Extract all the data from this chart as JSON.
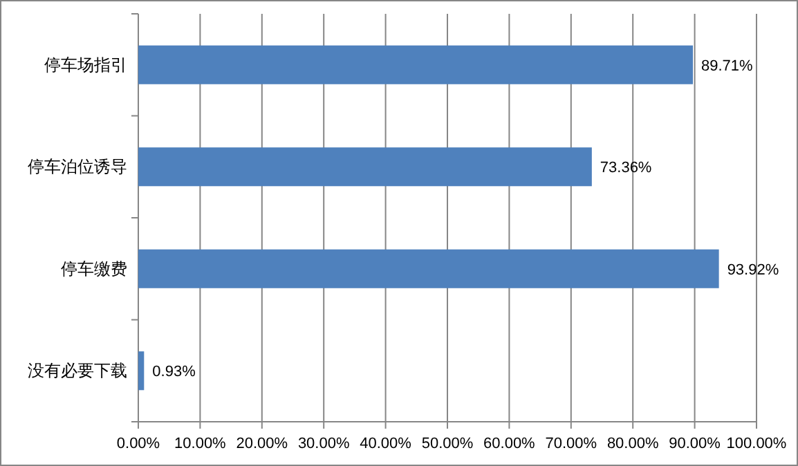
{
  "chart_data": {
    "type": "bar",
    "orientation": "horizontal",
    "categories": [
      "停车场指引",
      "停车泊位诱导",
      "停车缴费",
      "没有必要下载"
    ],
    "values": [
      89.71,
      73.36,
      93.92,
      0.93
    ],
    "value_labels": [
      "89.71%",
      "73.36%",
      "93.92%",
      "0.93%"
    ],
    "color": "#4f81bd",
    "xlim": [
      0,
      100
    ],
    "xticks": [
      {
        "value": 0,
        "label": "0.00%"
      },
      {
        "value": 10,
        "label": "10.00%"
      },
      {
        "value": 20,
        "label": "20.00%"
      },
      {
        "value": 30,
        "label": "30.00%"
      },
      {
        "value": 40,
        "label": "40.00%"
      },
      {
        "value": 50,
        "label": "50.00%"
      },
      {
        "value": 60,
        "label": "60.00%"
      },
      {
        "value": 70,
        "label": "70.00%"
      },
      {
        "value": 80,
        "label": "80.00%"
      },
      {
        "value": 90,
        "label": "90.00%"
      },
      {
        "value": 100,
        "label": "100.00%"
      }
    ],
    "grid": "x"
  }
}
